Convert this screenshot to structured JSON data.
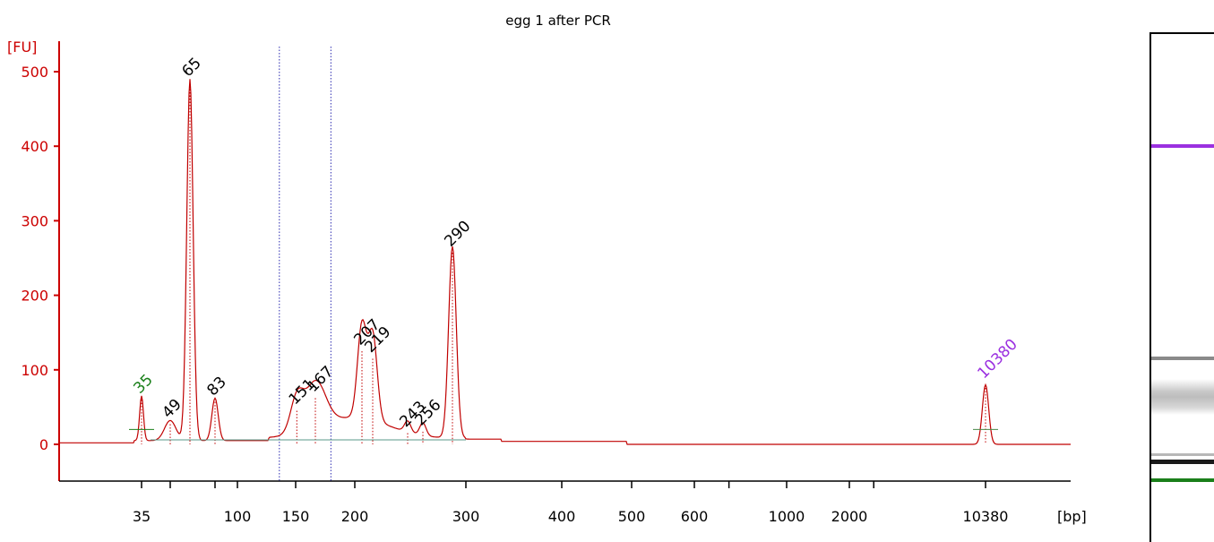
{
  "chart_data": {
    "type": "line",
    "title": "egg 1 after PCR",
    "ylabel": "[FU]",
    "xlabel": "[bp]",
    "ylim": [
      -50,
      530
    ],
    "yticks": [
      0,
      100,
      200,
      300,
      400,
      500
    ],
    "xtick_labels": [
      "35",
      "100",
      "150",
      "200",
      "300",
      "400",
      "500",
      "600",
      "1000",
      "2000",
      "10380"
    ],
    "grid": false,
    "series": [
      {
        "color": "#c00000",
        "x": [
          35,
          49,
          65,
          83,
          151,
          167,
          207,
          219,
          243,
          256,
          290,
          10380
        ],
        "y": [
          60,
          27,
          485,
          57,
          45,
          62,
          125,
          115,
          15,
          17,
          257,
          80
        ]
      }
    ],
    "peak_labels": [
      {
        "label": "35",
        "value": 60,
        "color": "#1a7f1a"
      },
      {
        "label": "49",
        "value": 27,
        "color": "#000000"
      },
      {
        "label": "65",
        "value": 485,
        "color": "#000000"
      },
      {
        "label": "83",
        "value": 57,
        "color": "#000000"
      },
      {
        "label": "151",
        "value": 45,
        "color": "#000000"
      },
      {
        "label": "167",
        "value": 62,
        "color": "#000000"
      },
      {
        "label": "207",
        "value": 125,
        "color": "#000000"
      },
      {
        "label": "219",
        "value": 115,
        "color": "#000000"
      },
      {
        "label": "243",
        "value": 15,
        "color": "#000000"
      },
      {
        "label": "256",
        "value": 17,
        "color": "#000000"
      },
      {
        "label": "290",
        "value": 257,
        "color": "#000000"
      },
      {
        "label": "10380",
        "value": 80,
        "color": "#9b30e0"
      }
    ],
    "colors": {
      "axis": "#cc0000",
      "trace": "#c00000",
      "lower_marker": "#1a7f1a",
      "upper_marker": "#9b30e0",
      "region_lines": "#2b2bb0"
    }
  }
}
